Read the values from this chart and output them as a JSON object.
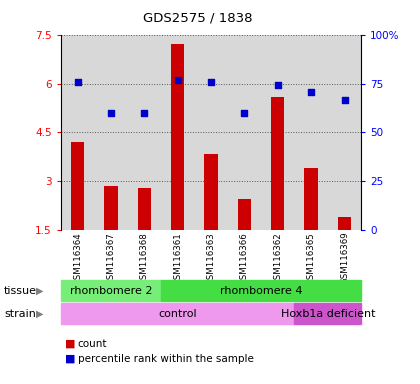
{
  "title": "GDS2575 / 1838",
  "samples": [
    "GSM116364",
    "GSM116367",
    "GSM116368",
    "GSM116361",
    "GSM116363",
    "GSM116366",
    "GSM116362",
    "GSM116365",
    "GSM116369"
  ],
  "counts": [
    4.2,
    2.85,
    2.8,
    7.2,
    3.85,
    2.45,
    5.6,
    3.4,
    1.9
  ],
  "percentiles_left_scale": [
    6.05,
    5.1,
    5.1,
    6.1,
    6.05,
    5.1,
    5.95,
    5.75,
    5.5
  ],
  "ylim_left": [
    1.5,
    7.5
  ],
  "yticks_left": [
    1.5,
    3.0,
    4.5,
    6.0,
    7.5
  ],
  "ytick_labels_left": [
    "1.5",
    "3",
    "4.5",
    "6",
    "7.5"
  ],
  "ytick_labels_right": [
    "0",
    "25",
    "50",
    "75",
    "100%"
  ],
  "bar_color": "#cc0000",
  "dot_color": "#0000cc",
  "tissue_groups": [
    {
      "label": "rhombomere 2",
      "start": 0,
      "end": 3,
      "color": "#77ee77"
    },
    {
      "label": "rhombomere 4",
      "start": 3,
      "end": 9,
      "color": "#44dd44"
    }
  ],
  "strain_groups": [
    {
      "label": "control",
      "start": 0,
      "end": 7,
      "color": "#ee99ee"
    },
    {
      "label": "Hoxb1a deficient",
      "start": 7,
      "end": 9,
      "color": "#cc55cc"
    }
  ],
  "bg_color": "#d8d8d8",
  "grid_color": "#555555",
  "label_tissue": "tissue",
  "label_strain": "strain"
}
